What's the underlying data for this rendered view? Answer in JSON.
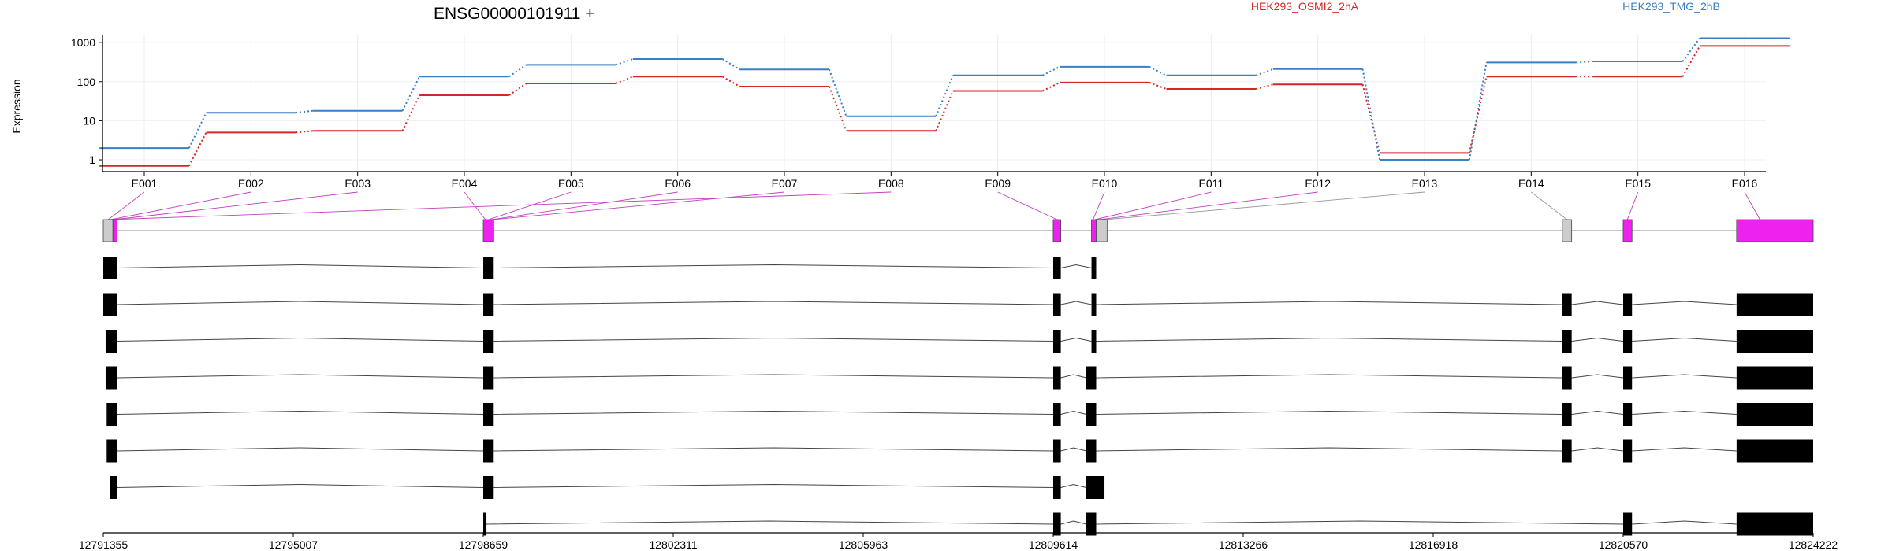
{
  "chart_data": {
    "type": "line",
    "title": "ENSG00000101911 +",
    "ylabel": "Expression",
    "yscale": "log",
    "ylim": [
      0.5,
      1600
    ],
    "yticks": [
      "1",
      "10",
      "100",
      "1000"
    ],
    "ytick_values": [
      1,
      10,
      100,
      1000
    ],
    "categories": [
      "E001",
      "E002",
      "E003",
      "E004",
      "E005",
      "E006",
      "E007",
      "E008",
      "E009",
      "E010",
      "E011",
      "E012",
      "E013",
      "E014",
      "E015",
      "E016"
    ],
    "legend_position": "top",
    "series": [
      {
        "name": "HEK293_OSMI2_2hA",
        "color": "#d62728",
        "values": [
          0.7,
          5,
          5.5,
          45,
          90,
          135,
          75,
          5.5,
          58,
          95,
          65,
          85,
          1.5,
          135,
          135,
          820
        ]
      },
      {
        "name": "HEK293_TMG_2hB",
        "color": "#3b7fc4",
        "values": [
          2,
          16,
          18,
          135,
          270,
          380,
          205,
          13,
          145,
          240,
          145,
          210,
          1,
          310,
          330,
          1300
        ]
      }
    ],
    "exon_colors": [
      "magenta",
      "magenta",
      "magenta",
      "magenta",
      "magenta",
      "magenta",
      "magenta",
      "magenta",
      "magenta",
      "magenta",
      "magenta",
      "magenta",
      "grey",
      "grey",
      "magenta",
      "magenta"
    ],
    "genomic_axis": {
      "start": 12791355,
      "end": 12824222,
      "tick_labels": [
        "12791355",
        "12795007",
        "12798659",
        "12802311",
        "12805963",
        "12809614",
        "12813266",
        "12816918",
        "12820570",
        "12824222"
      ]
    },
    "gene_model": [
      {
        "start": 12791355,
        "end": 12791540,
        "color": "grey"
      },
      {
        "start": 12791540,
        "end": 12791620,
        "color": "magenta"
      },
      {
        "start": 12798659,
        "end": 12798860,
        "color": "magenta"
      },
      {
        "start": 12809614,
        "end": 12809760,
        "color": "magenta"
      },
      {
        "start": 12810350,
        "end": 12810440,
        "color": "magenta"
      },
      {
        "start": 12810440,
        "end": 12810650,
        "color": "grey"
      },
      {
        "start": 12819400,
        "end": 12819580,
        "color": "grey"
      },
      {
        "start": 12820570,
        "end": 12820740,
        "color": "magenta"
      },
      {
        "start": 12822750,
        "end": 12824222,
        "color": "magenta"
      }
    ],
    "transcripts": [
      [
        [
          12791355,
          12791620
        ],
        [
          12798659,
          12798860
        ],
        [
          12809614,
          12809760
        ],
        [
          12810350,
          12810440
        ]
      ],
      [
        [
          12791355,
          12791620
        ],
        [
          12798659,
          12798860
        ],
        [
          12809614,
          12809760
        ],
        [
          12810350,
          12810440
        ],
        [
          12819400,
          12819580
        ],
        [
          12820570,
          12820740
        ],
        [
          12822750,
          12824222
        ]
      ],
      [
        [
          12791400,
          12791620
        ],
        [
          12798659,
          12798860
        ],
        [
          12809614,
          12809760
        ],
        [
          12810350,
          12810440
        ],
        [
          12819400,
          12819580
        ],
        [
          12820570,
          12820740
        ],
        [
          12822750,
          12824222
        ]
      ],
      [
        [
          12791400,
          12791620
        ],
        [
          12798659,
          12798860
        ],
        [
          12809614,
          12809760
        ],
        [
          12810250,
          12810440
        ],
        [
          12819400,
          12819580
        ],
        [
          12820570,
          12820740
        ],
        [
          12822750,
          12824222
        ]
      ],
      [
        [
          12791420,
          12791620
        ],
        [
          12798659,
          12798860
        ],
        [
          12809614,
          12809760
        ],
        [
          12810250,
          12810440
        ],
        [
          12819400,
          12819580
        ],
        [
          12820570,
          12820740
        ],
        [
          12822750,
          12824222
        ]
      ],
      [
        [
          12791420,
          12791620
        ],
        [
          12798659,
          12798860
        ],
        [
          12809614,
          12809760
        ],
        [
          12810250,
          12810440
        ],
        [
          12819400,
          12819580
        ],
        [
          12820570,
          12820740
        ],
        [
          12822750,
          12824222
        ]
      ],
      [
        [
          12791480,
          12791620
        ],
        [
          12798659,
          12798860
        ],
        [
          12809614,
          12809760
        ],
        [
          12810250,
          12810600
        ]
      ],
      [
        [
          12798659,
          12798720
        ],
        [
          12809614,
          12809760
        ],
        [
          12810250,
          12810440
        ],
        [
          12820570,
          12820740
        ],
        [
          12822750,
          12824222
        ]
      ]
    ]
  }
}
